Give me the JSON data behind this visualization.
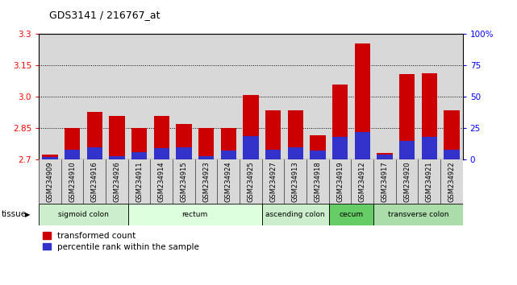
{
  "title": "GDS3141 / 216767_at",
  "samples": [
    "GSM234909",
    "GSM234910",
    "GSM234916",
    "GSM234926",
    "GSM234911",
    "GSM234914",
    "GSM234915",
    "GSM234923",
    "GSM234924",
    "GSM234925",
    "GSM234927",
    "GSM234913",
    "GSM234918",
    "GSM234919",
    "GSM234912",
    "GSM234917",
    "GSM234920",
    "GSM234921",
    "GSM234922"
  ],
  "transformed_count": [
    2.725,
    2.85,
    2.93,
    2.91,
    2.85,
    2.91,
    2.87,
    2.85,
    2.85,
    3.01,
    2.935,
    2.935,
    2.815,
    3.06,
    3.255,
    2.73,
    3.11,
    3.115,
    2.935
  ],
  "percentile_rank": [
    2,
    8,
    10,
    3,
    6,
    9,
    10,
    3,
    7,
    19,
    8,
    10,
    7,
    18,
    22,
    4,
    15,
    18,
    8
  ],
  "ylim_left": [
    2.7,
    3.3
  ],
  "yticks_left": [
    2.7,
    2.85,
    3.0,
    3.15,
    3.3
  ],
  "ylim_right": [
    0,
    100
  ],
  "yticks_right": [
    0,
    25,
    50,
    75,
    100
  ],
  "bar_color_red": "#cc0000",
  "bar_color_blue": "#3333cc",
  "tissue_groups": [
    {
      "label": "sigmoid colon",
      "start": 0,
      "end": 4,
      "color": "#cceecc"
    },
    {
      "label": "rectum",
      "start": 4,
      "end": 10,
      "color": "#ddffdd"
    },
    {
      "label": "ascending colon",
      "start": 10,
      "end": 13,
      "color": "#cceecc"
    },
    {
      "label": "cecum",
      "start": 13,
      "end": 15,
      "color": "#66cc66"
    },
    {
      "label": "transverse colon",
      "start": 15,
      "end": 19,
      "color": "#aaddaa"
    }
  ],
  "legend_labels": [
    "transformed count",
    "percentile rank within the sample"
  ],
  "legend_colors": [
    "#cc0000",
    "#3333cc"
  ],
  "tissue_label": "tissue",
  "col_bg_color": "#d8d8d8"
}
